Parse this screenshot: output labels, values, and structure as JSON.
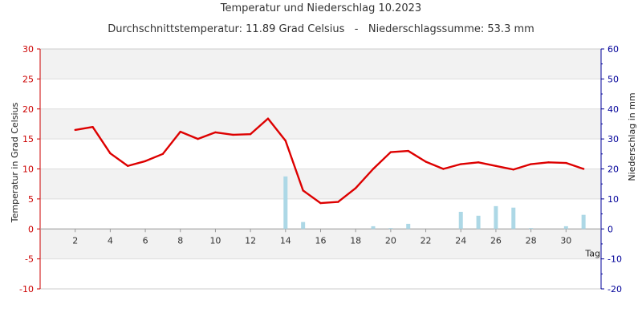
{
  "chart_data": {
    "type": "line",
    "title": "Temperatur und Niederschlag 10.2023",
    "subtitle": "Durchschnittstemperatur: 11.89 Grad Celsius   -   Niederschlagssumme: 53.3 mm",
    "xlabel": "Tag",
    "ylabel_left": "Temperatur in Grad Celsius",
    "ylabel_right": "Niederschlag in mm",
    "xlim": [
      0,
      32
    ],
    "ylim_left": [
      -10,
      30
    ],
    "ylim_right": [
      -20,
      60
    ],
    "x_ticks": [
      2,
      4,
      6,
      8,
      10,
      12,
      14,
      16,
      18,
      20,
      22,
      24,
      26,
      28,
      30
    ],
    "y_ticks_left": [
      30,
      25,
      20,
      15,
      10,
      5,
      0,
      -5,
      -10
    ],
    "y_ticks_right": [
      60,
      50,
      40,
      30,
      20,
      10,
      0,
      -10,
      -20
    ],
    "grid": "horizontal",
    "series": [
      {
        "name": "",
        "kind": "line",
        "axis": "left",
        "color": "#dd0000",
        "x": [
          2,
          3,
          4,
          5,
          6,
          7,
          8,
          9,
          10,
          11,
          12,
          13,
          14,
          15,
          16,
          17,
          18,
          19,
          20,
          21,
          22,
          23,
          24,
          25,
          26,
          27,
          28,
          29,
          30,
          31
        ],
        "values": [
          16.5,
          17.0,
          12.6,
          10.5,
          11.3,
          12.5,
          16.2,
          15.0,
          16.1,
          15.7,
          15.8,
          18.4,
          14.7,
          6.4,
          4.3,
          4.5,
          6.8,
          10.0,
          12.8,
          13.0,
          11.2,
          10.0,
          10.8,
          11.1,
          10.5,
          9.9,
          10.8,
          11.1,
          11.0,
          10.0
        ]
      },
      {
        "name": "",
        "kind": "bar",
        "axis": "right",
        "color": "#add8e6",
        "x": [
          14,
          15,
          19,
          20,
          21,
          24,
          25,
          26,
          27,
          28,
          30,
          31
        ],
        "values": [
          17.5,
          2.3,
          0.9,
          0.3,
          1.7,
          5.7,
          4.4,
          7.6,
          7.1,
          0.3,
          0.9,
          4.7
        ]
      }
    ]
  }
}
